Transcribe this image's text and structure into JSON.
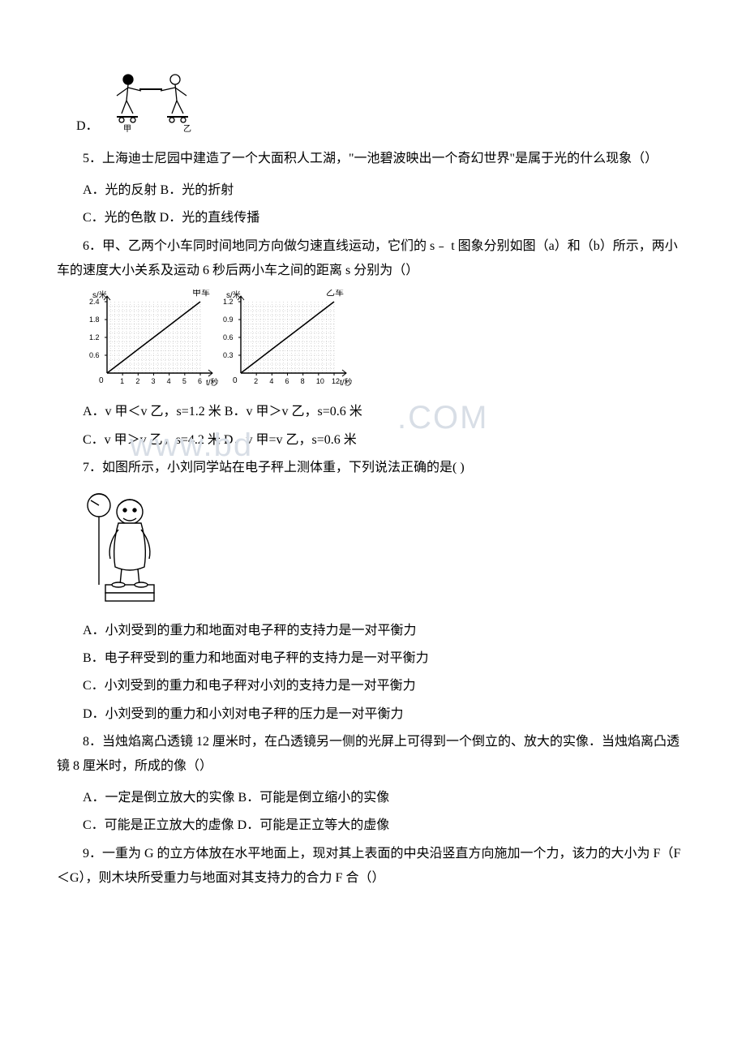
{
  "q4": {
    "option_d_label": "D．"
  },
  "q5": {
    "stem": "5．上海迪士尼园中建造了一个大面积人工湖，\"一池碧波映出一个奇幻世界\"是属于光的什么现象（）",
    "line1": "A．光的反射 B．光的折射",
    "line2": "C．光的色散 D．光的直线传播"
  },
  "q6": {
    "stem": "6．甲、乙两个小车同时间地同方向做匀速直线运动，它们的 s﹣ t 图象分别如图（a）和（b）所示，两小车的速度大小关系及运动 6 秒后两小车之间的距离 s 分别为（）",
    "graph": {
      "left": {
        "label": "甲车",
        "y_axis": "s/米",
        "x_axis": "t/秒",
        "y_ticks": [
          "0.6",
          "1.2",
          "1.8",
          "2.4"
        ],
        "x_ticks": [
          "1",
          "2",
          "3",
          "4",
          "5",
          "6"
        ],
        "points": [
          [
            0,
            0
          ],
          [
            1,
            0.4
          ],
          [
            2,
            0.8
          ],
          [
            3,
            1.2
          ],
          [
            4,
            1.6
          ],
          [
            5,
            2.0
          ],
          [
            6,
            2.4
          ]
        ]
      },
      "right": {
        "label": "乙车",
        "y_axis": "s/米",
        "x_axis": "t/秒",
        "y_ticks": [
          "0.3",
          "0.6",
          "0.9",
          "1.2"
        ],
        "x_ticks": [
          "2",
          "4",
          "6",
          "8",
          "10",
          "12"
        ],
        "points": [
          [
            0,
            0
          ],
          [
            2,
            0.2
          ],
          [
            4,
            0.4
          ],
          [
            6,
            0.6
          ],
          [
            8,
            0.8
          ],
          [
            10,
            1.0
          ],
          [
            12,
            1.2
          ]
        ]
      },
      "colors": {
        "line": "#000000",
        "grid": "#000000",
        "bg": "#ffffff"
      }
    },
    "line1": "A．v 甲＜v 乙，s=1.2 米 B．v 甲＞v 乙，s=0.6 米",
    "line2": "C．v 甲＞v 乙，s=4.2 米 D．v 甲=v 乙，s=0.6 米"
  },
  "q7": {
    "stem": "7．如图所示，小刘同学站在电子秤上测体重，下列说法正确的是( )",
    "optA": "A．小刘受到的重力和地面对电子秤的支持力是一对平衡力",
    "optB": "B．电子秤受到的重力和地面对电子秤的支持力是一对平衡力",
    "optC": "C．小刘受到的重力和电子秤对小刘的支持力是一对平衡力",
    "optD": "D．小刘受到的重力和小刘对电子秤的压力是一对平衡力"
  },
  "q8": {
    "stem": "8．当烛焰离凸透镜 12 厘米时，在凸透镜另一侧的光屏上可得到一个倒立的、放大的实像．当烛焰离凸透镜 8 厘米时，所成的像（）",
    "line1": "A．一定是倒立放大的实像 B．可能是倒立缩小的实像",
    "line2": "C．可能是正立放大的虚像 D．可能是正立等大的虚像"
  },
  "q9": {
    "stem": "9．一重为 G 的立方体放在水平地面上，现对其上表面的中央沿竖直方向施加一个力，该力的大小为 F（F＜G），则木块所受重力与地面对其支持力的合力 F 合（）"
  },
  "watermark": {
    "left": "www.bd",
    "right": ".COM"
  }
}
